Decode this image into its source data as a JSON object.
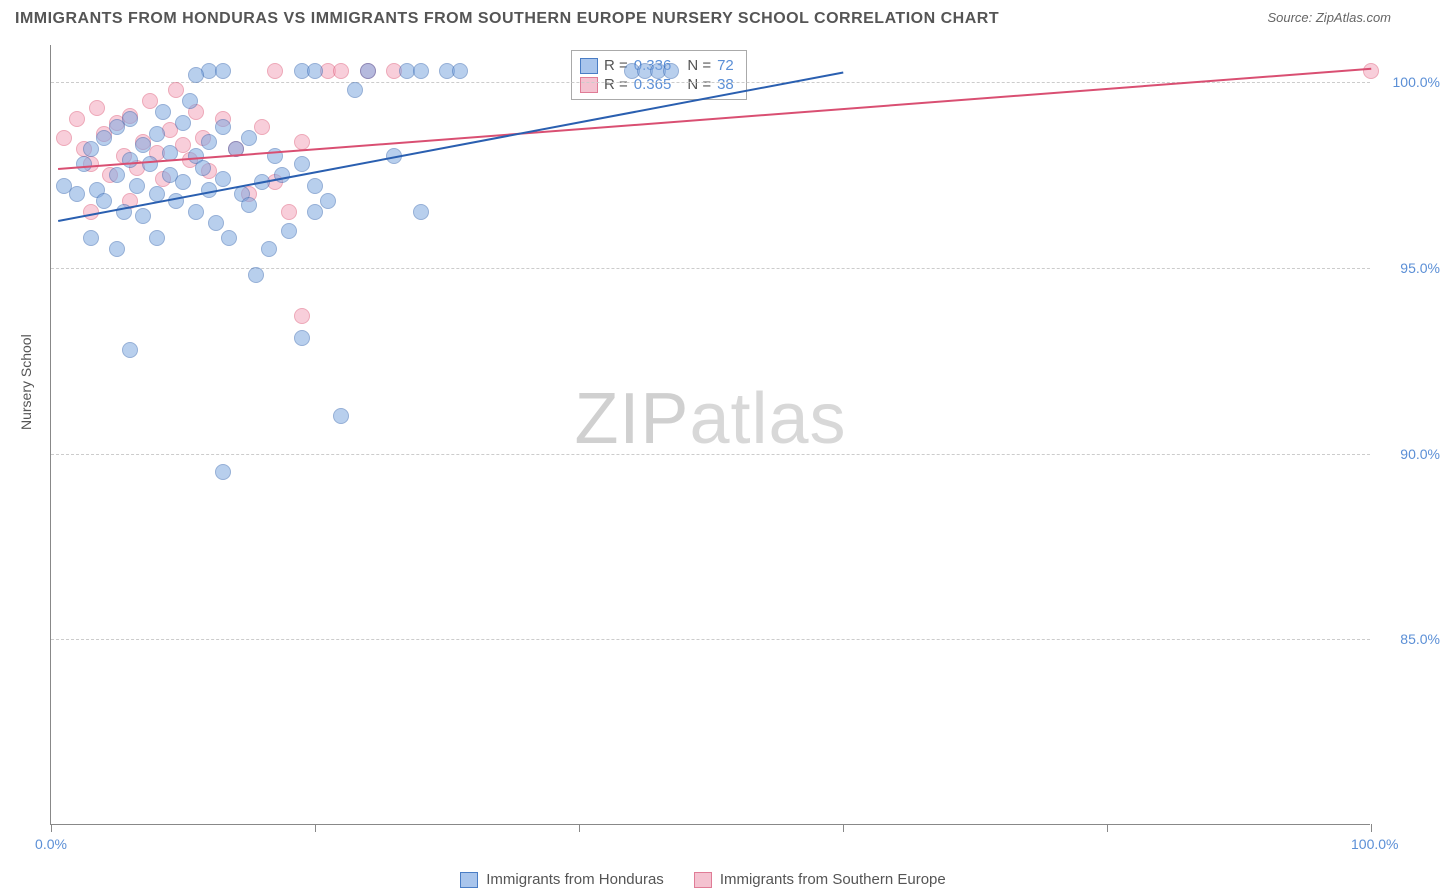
{
  "title": "IMMIGRANTS FROM HONDURAS VS IMMIGRANTS FROM SOUTHERN EUROPE NURSERY SCHOOL CORRELATION CHART",
  "source_label": "Source: ZipAtlas.com",
  "watermark_text": "ZIPatlas",
  "ylabel": "Nursery School",
  "chart": {
    "type": "scatter",
    "xlim": [
      0,
      100
    ],
    "ylim": [
      80,
      101
    ],
    "x_ticks": [
      0,
      20,
      40,
      60,
      80,
      100
    ],
    "x_tick_labels_shown": {
      "0": "0.0%",
      "100": "100.0%"
    },
    "y_ticks": [
      85,
      90,
      95,
      100
    ],
    "y_tick_labels": [
      "85.0%",
      "90.0%",
      "95.0%",
      "100.0%"
    ],
    "background_color": "#ffffff",
    "grid_color": "#cccccc",
    "axis_color": "#888888",
    "marker_size": 16
  },
  "series": {
    "blue": {
      "label": "Immigrants from Honduras",
      "fill_color": "#a9c5ec",
      "stroke_color": "#4a7dc5",
      "line_color": "#2a5fb0",
      "R": "0.336",
      "N": "72",
      "trend": {
        "x1": 0.5,
        "y1": 96.3,
        "x2": 60,
        "y2": 100.3
      },
      "points": [
        [
          1,
          97.2
        ],
        [
          2,
          97.0
        ],
        [
          2.5,
          97.8
        ],
        [
          3,
          98.2
        ],
        [
          3.5,
          97.1
        ],
        [
          4,
          98.5
        ],
        [
          4,
          96.8
        ],
        [
          5,
          97.5
        ],
        [
          5,
          98.8
        ],
        [
          5.5,
          96.5
        ],
        [
          6,
          97.9
        ],
        [
          6,
          99.0
        ],
        [
          6.5,
          97.2
        ],
        [
          7,
          98.3
        ],
        [
          7,
          96.4
        ],
        [
          7.5,
          97.8
        ],
        [
          8,
          98.6
        ],
        [
          8,
          97.0
        ],
        [
          8.5,
          99.2
        ],
        [
          9,
          97.5
        ],
        [
          9,
          98.1
        ],
        [
          9.5,
          96.8
        ],
        [
          10,
          98.9
        ],
        [
          10,
          97.3
        ],
        [
          10.5,
          99.5
        ],
        [
          11,
          98.0
        ],
        [
          11,
          96.5
        ],
        [
          11.5,
          97.7
        ],
        [
          12,
          98.4
        ],
        [
          12,
          97.1
        ],
        [
          12.5,
          96.2
        ],
        [
          13,
          98.8
        ],
        [
          13,
          97.4
        ],
        [
          13.5,
          95.8
        ],
        [
          14,
          98.2
        ],
        [
          14.5,
          97.0
        ],
        [
          15,
          96.7
        ],
        [
          15,
          98.5
        ],
        [
          15.5,
          94.8
        ],
        [
          16,
          97.3
        ],
        [
          16.5,
          95.5
        ],
        [
          17,
          98.0
        ],
        [
          17.5,
          97.5
        ],
        [
          18,
          96.0
        ],
        [
          19,
          93.1
        ],
        [
          19,
          97.8
        ],
        [
          20,
          96.5
        ],
        [
          20,
          97.2
        ],
        [
          21,
          96.8
        ],
        [
          5,
          95.5
        ],
        [
          8,
          95.8
        ],
        [
          6,
          92.8
        ],
        [
          13,
          89.5
        ],
        [
          22,
          91.0
        ],
        [
          12,
          100.3
        ],
        [
          13,
          100.3
        ],
        [
          19,
          100.3
        ],
        [
          20,
          100.3
        ],
        [
          24,
          100.3
        ],
        [
          27,
          100.3
        ],
        [
          28,
          100.3
        ],
        [
          30,
          100.3
        ],
        [
          31,
          100.3
        ],
        [
          28,
          96.5
        ],
        [
          26,
          98.0
        ],
        [
          44,
          100.3
        ],
        [
          45,
          100.3
        ],
        [
          46,
          100.3
        ],
        [
          47,
          100.3
        ],
        [
          23,
          99.8
        ],
        [
          11,
          100.2
        ],
        [
          3,
          95.8
        ]
      ]
    },
    "pink": {
      "label": "Immigrants from Southern Europe",
      "fill_color": "#f4c2d0",
      "stroke_color": "#e07c96",
      "line_color": "#d94f72",
      "R": "0.365",
      "N": "38",
      "trend": {
        "x1": 0.5,
        "y1": 97.7,
        "x2": 100,
        "y2": 100.4
      },
      "points": [
        [
          1,
          98.5
        ],
        [
          2,
          99.0
        ],
        [
          2.5,
          98.2
        ],
        [
          3,
          97.8
        ],
        [
          3.5,
          99.3
        ],
        [
          4,
          98.6
        ],
        [
          4.5,
          97.5
        ],
        [
          5,
          98.9
        ],
        [
          5.5,
          98.0
        ],
        [
          6,
          99.1
        ],
        [
          6.5,
          97.7
        ],
        [
          7,
          98.4
        ],
        [
          7.5,
          99.5
        ],
        [
          8,
          98.1
        ],
        [
          8.5,
          97.4
        ],
        [
          9,
          98.7
        ],
        [
          9.5,
          99.8
        ],
        [
          10,
          98.3
        ],
        [
          10.5,
          97.9
        ],
        [
          11,
          99.2
        ],
        [
          11.5,
          98.5
        ],
        [
          12,
          97.6
        ],
        [
          13,
          99.0
        ],
        [
          14,
          98.2
        ],
        [
          15,
          97.0
        ],
        [
          16,
          98.8
        ],
        [
          17,
          97.3
        ],
        [
          18,
          96.5
        ],
        [
          19,
          98.4
        ],
        [
          19,
          93.7
        ],
        [
          21,
          100.3
        ],
        [
          22,
          100.3
        ],
        [
          24,
          100.3
        ],
        [
          26,
          100.3
        ],
        [
          17,
          100.3
        ],
        [
          100,
          100.3
        ],
        [
          3,
          96.5
        ],
        [
          6,
          96.8
        ]
      ]
    }
  },
  "legend_stats_title": {
    "r_prefix": "R = ",
    "n_prefix": "N = "
  }
}
